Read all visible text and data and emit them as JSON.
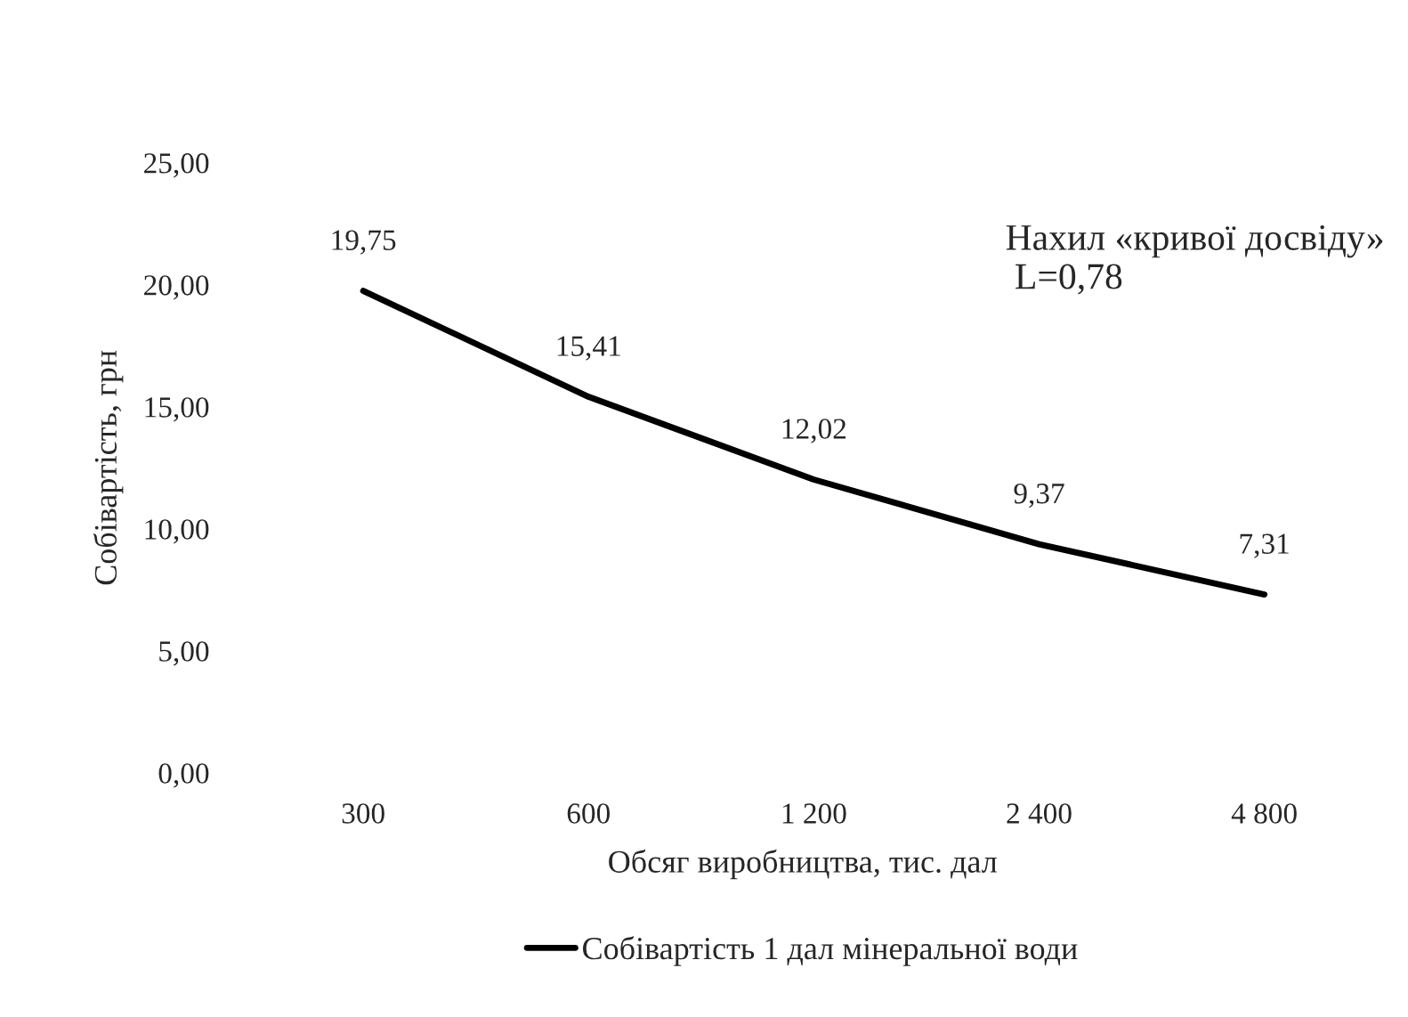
{
  "chart_data": {
    "type": "line",
    "xlabel": "Обсяг виробництва, тис. дал",
    "ylabel": "Собівартість, грн",
    "categories": [
      "300",
      "600",
      "1 200",
      "2 400",
      "4 800"
    ],
    "series": [
      {
        "name": "Собівартість 1 дал мінеральної води",
        "color": "#000000",
        "values": [
          19.75,
          15.41,
          12.02,
          9.37,
          7.31
        ],
        "value_labels": [
          "19,75",
          "15,41",
          "12,02",
          "9,37",
          "7,31"
        ]
      }
    ],
    "ylim": [
      0,
      25
    ],
    "yticks": [
      {
        "value": 0,
        "label": "0,00"
      },
      {
        "value": 5,
        "label": "5,00"
      },
      {
        "value": 10,
        "label": "10,00"
      },
      {
        "value": 15,
        "label": "15,00"
      },
      {
        "value": 20,
        "label": "20,00"
      },
      {
        "value": 25,
        "label": "25,00"
      }
    ],
    "annotations": [
      "Нахил «кривої досвіду»\n L=0,78"
    ],
    "grid": false,
    "legend": "bottom",
    "marker": "none",
    "line_style": "solid"
  }
}
